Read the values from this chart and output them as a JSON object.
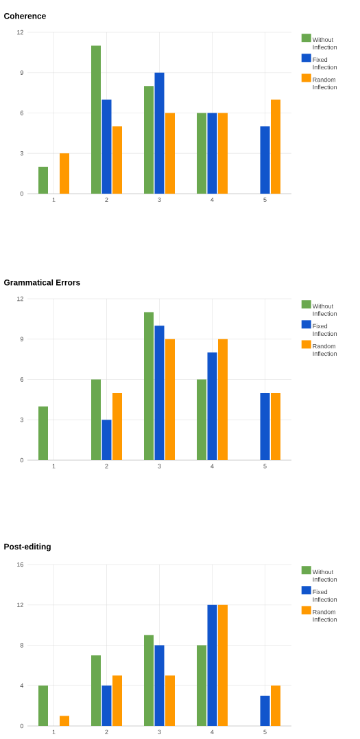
{
  "chart_data": [
    {
      "type": "bar",
      "title": "Coherence",
      "categories": [
        "1",
        "2",
        "3",
        "4",
        "5"
      ],
      "ylim": [
        0,
        12
      ],
      "yticks": [
        0,
        3,
        6,
        9,
        12
      ],
      "grid": true,
      "legend": "right",
      "series": [
        {
          "name": "Without Inflection",
          "color": "#6aa84f",
          "values": [
            2,
            11,
            8,
            6,
            null
          ]
        },
        {
          "name": "Fixed Inflection",
          "color": "#1155cc",
          "values": [
            null,
            7,
            9,
            6,
            5
          ]
        },
        {
          "name": "Random Inflection",
          "color": "#ff9900",
          "values": [
            3,
            5,
            6,
            6,
            7
          ]
        }
      ]
    },
    {
      "type": "bar",
      "title": "Grammatical Errors",
      "categories": [
        "1",
        "2",
        "3",
        "4",
        "5"
      ],
      "ylim": [
        0,
        12
      ],
      "yticks": [
        0,
        3,
        6,
        9,
        12
      ],
      "grid": true,
      "legend": "right",
      "series": [
        {
          "name": "Without Inflection",
          "color": "#6aa84f",
          "values": [
            4,
            6,
            11,
            6,
            null
          ]
        },
        {
          "name": "Fixed Inflection",
          "color": "#1155cc",
          "values": [
            null,
            3,
            10,
            8,
            5
          ]
        },
        {
          "name": "Random Inflection",
          "color": "#ff9900",
          "values": [
            null,
            5,
            9,
            9,
            5
          ]
        }
      ]
    },
    {
      "type": "bar",
      "title": "Post-editing",
      "categories": [
        "1",
        "2",
        "3",
        "4",
        "5"
      ],
      "ylim": [
        0,
        16
      ],
      "yticks": [
        0,
        4,
        8,
        12,
        16
      ],
      "grid": true,
      "legend": "right",
      "series": [
        {
          "name": "Without Inflection",
          "color": "#6aa84f",
          "values": [
            4,
            7,
            9,
            8,
            null
          ]
        },
        {
          "name": "Fixed Inflection",
          "color": "#1155cc",
          "values": [
            null,
            4,
            8,
            12,
            3
          ]
        },
        {
          "name": "Random Inflection",
          "color": "#ff9900",
          "values": [
            1,
            5,
            5,
            12,
            4
          ]
        }
      ]
    }
  ]
}
